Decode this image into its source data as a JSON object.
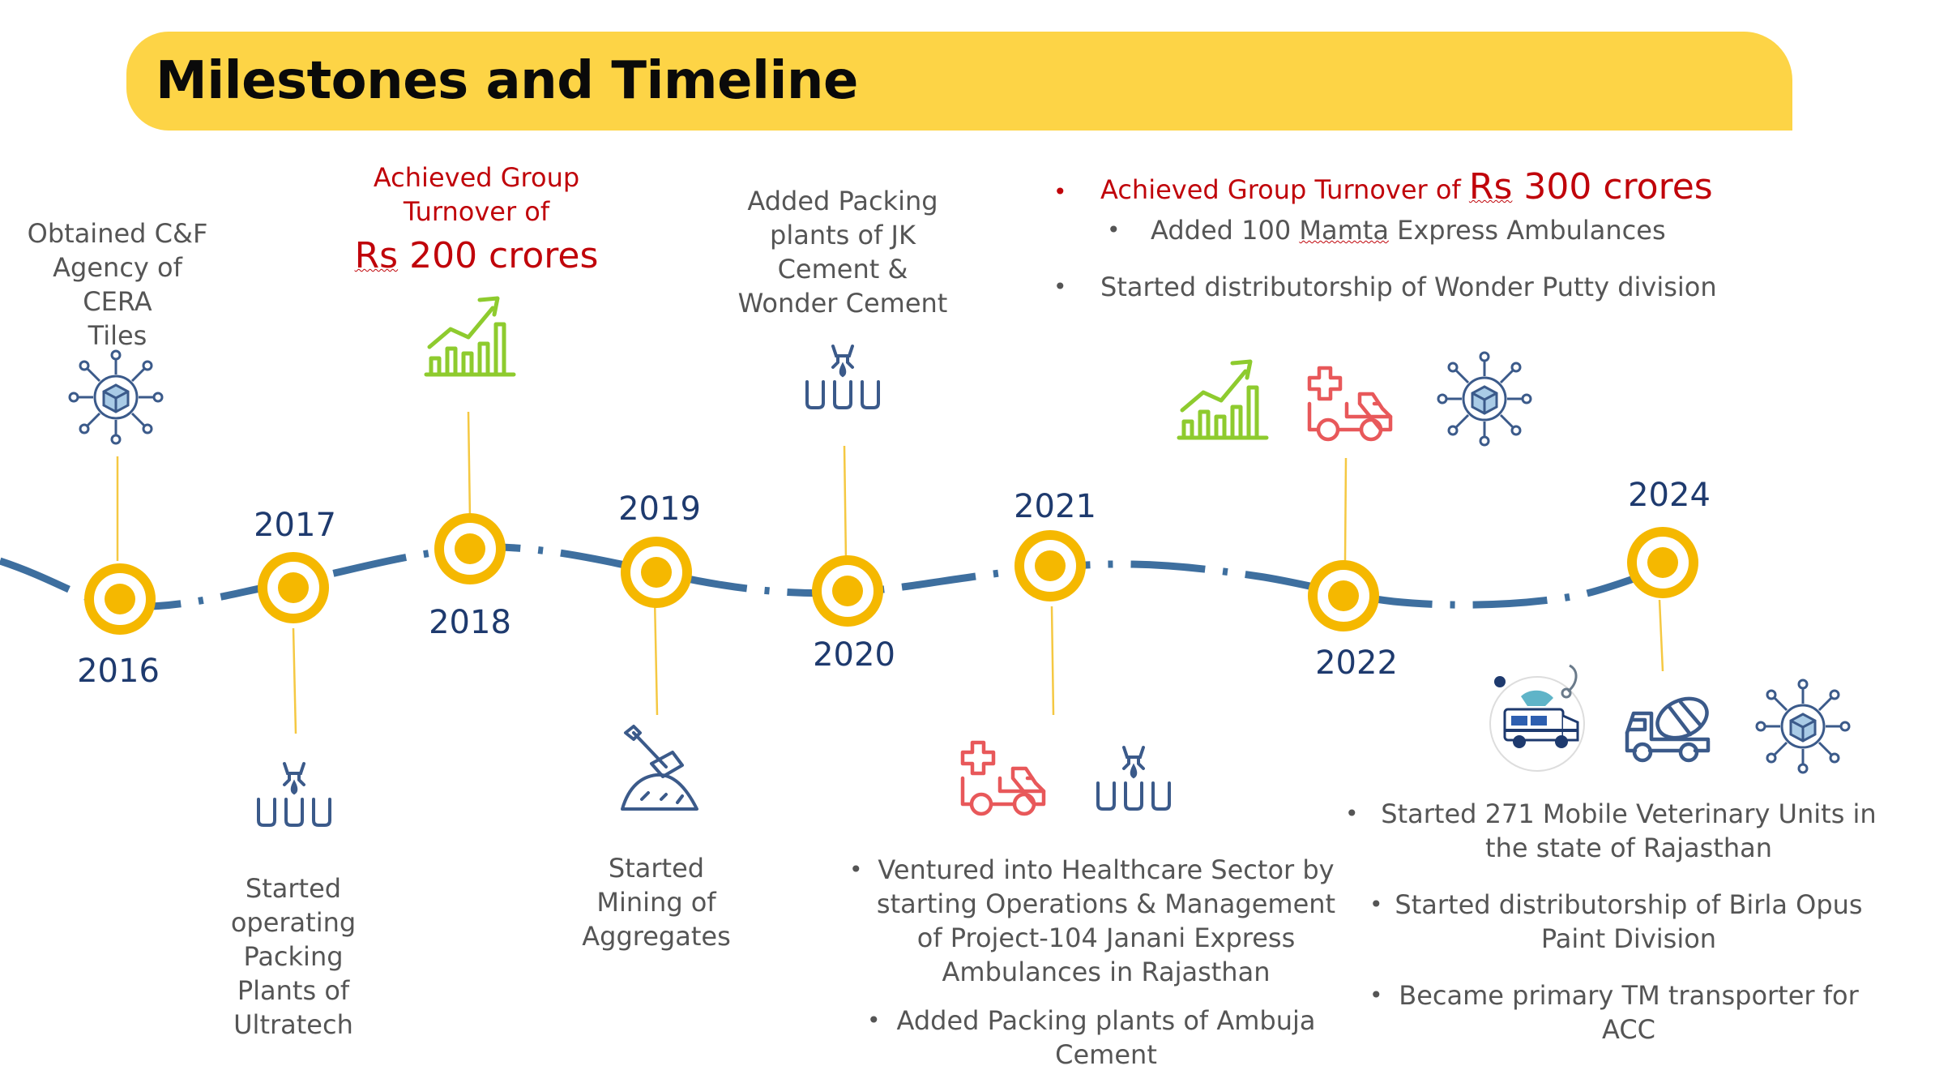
{
  "title": "Milestones and Timeline",
  "colors": {
    "band": "#fdd446",
    "node": "#f5b800",
    "path": "#3e6f9f",
    "red": "#c0040a",
    "green": "#8ecb2e",
    "blue": "#3b5a8a",
    "pink": "#e8585a"
  },
  "years": {
    "y2016": "2016",
    "y2017": "2017",
    "y2018": "2018",
    "y2019": "2019",
    "y2020": "2020",
    "y2021": "2021",
    "y2022": "2022",
    "y2024": "2024"
  },
  "m2016": {
    "line1": "Obtained C&F",
    "line2": "Agency of CERA",
    "line3": "Tiles"
  },
  "m2017": {
    "line1": "Started",
    "line2": "operating",
    "line3": "Packing",
    "line4": "Plants of",
    "line5": "Ultratech"
  },
  "m2018": {
    "line1": "Achieved Group",
    "line2": "Turnover of",
    "rs": "Rs",
    "amount": "200 crores"
  },
  "m2019": {
    "line1": "Started",
    "line2": "Mining of",
    "line3": "Aggregates"
  },
  "m2020": {
    "line1": "Added Packing",
    "line2": "plants of JK",
    "line3": "Cement &",
    "line4": "Wonder Cement"
  },
  "m2021": {
    "b1_l1": "Ventured into Healthcare Sector by",
    "b1_l2": "starting Operations & Management",
    "b1_l3": "of Project-104 Janani Express",
    "b1_l4": "Ambulances in Rajasthan",
    "b2_l1": "Added Packing plants of Ambuja",
    "b2_l2": "Cement"
  },
  "m2022": {
    "b1_text": "Achieved Group Turnover of ",
    "b1_rs": "Rs",
    "b1_amount": " 300 crores",
    "b2_pre": "Added 100 ",
    "b2_mamta": "Mamta",
    "b2_post": " Express Ambulances",
    "b3": "Started distributorship of Wonder Putty division"
  },
  "m2024": {
    "b1_l1": "Started 271 Mobile Veterinary Units in",
    "b1_l2": "the state of Rajasthan",
    "b2_l1": "Started distributorship of Birla Opus",
    "b2_l2": "Paint Division",
    "b3_l1": "Became primary TM transporter for",
    "b3_l2": "ACC"
  },
  "bullet": "•",
  "icons": [
    "network-cube-icon",
    "packing-plant-icon",
    "growth-chart-icon",
    "mining-shovel-icon",
    "ambulance-cross-icon",
    "veterinary-van-icon",
    "mixer-truck-icon"
  ]
}
